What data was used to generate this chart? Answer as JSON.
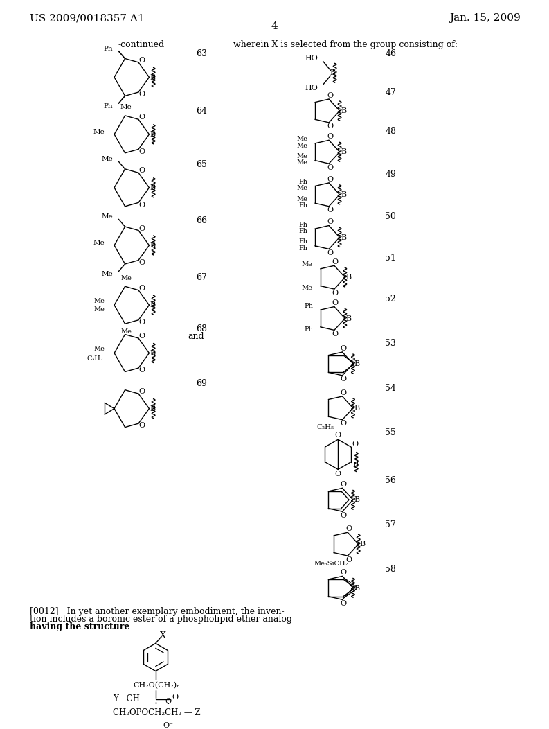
{
  "page_header_left": "US 2009/0018357 A1",
  "page_header_right": "Jan. 15, 2009",
  "page_number": "4",
  "continued_label": "-continued",
  "right_header": "wherein X is selected from the group consisting of:",
  "background_color": "#ffffff",
  "text_color": "#000000",
  "font_size_header": 11,
  "font_size_body": 9,
  "paragraph_line1": "[0012]   In yet another exemplary embodiment, the inven-",
  "paragraph_line2": "tion includes a boronic ester of a phospholipid ether analog",
  "paragraph_line3": "having the structure",
  "and_text": "and",
  "left_numbers": [
    "63",
    "64",
    "65",
    "66",
    "67",
    "68",
    "69"
  ],
  "right_numbers": [
    "46",
    "47",
    "48",
    "49",
    "50",
    "51",
    "52",
    "53",
    "54",
    "55",
    "56",
    "57",
    "58"
  ]
}
